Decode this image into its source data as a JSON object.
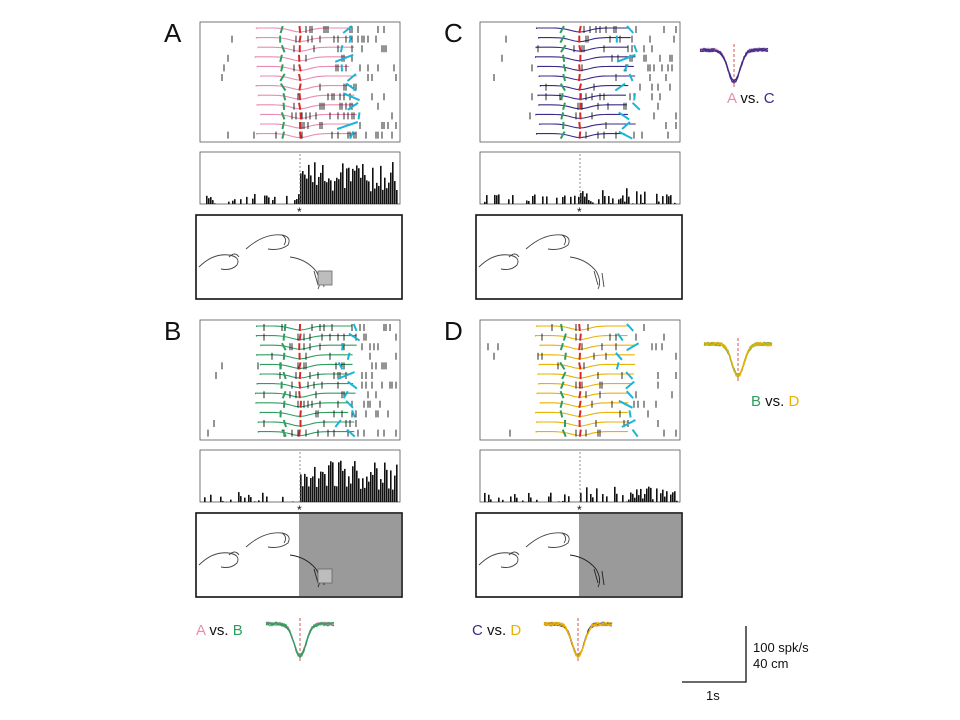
{
  "panels": [
    {
      "letter": "A",
      "color": "#e98bb2",
      "shaded": false,
      "object": true,
      "star": "*",
      "seed": 11
    },
    {
      "letter": "C",
      "color": "#3b2a8a",
      "shaded": false,
      "object": false,
      "star": "*",
      "seed": 23
    },
    {
      "letter": "B",
      "color": "#2e9e5e",
      "shaded": true,
      "object": true,
      "star": "*",
      "seed": 37
    },
    {
      "letter": "D",
      "color": "#eab200",
      "shaded": true,
      "object": false,
      "star": "*",
      "seed": 53
    }
  ],
  "comparisons": {
    "AC": {
      "left": "A",
      "sep": " vs. ",
      "right": "C"
    },
    "BD": {
      "left": "B",
      "sep": " vs. ",
      "right": "D"
    },
    "AB": {
      "left": "A",
      "sep": " vs. ",
      "right": "B"
    },
    "CD": {
      "left": "C",
      "sep": " vs. ",
      "right": "D"
    }
  },
  "scale": {
    "rate": "100 spk/s",
    "dist": "40 cm",
    "time": "1s"
  },
  "colors": {
    "pink": "#e98bb2",
    "purple": "#3b2a8a",
    "green": "#2e9e5e",
    "yellow": "#eab200",
    "red": "#d62828",
    "cyan": "#19b5d8",
    "shade": "#9a9a9a"
  }
}
